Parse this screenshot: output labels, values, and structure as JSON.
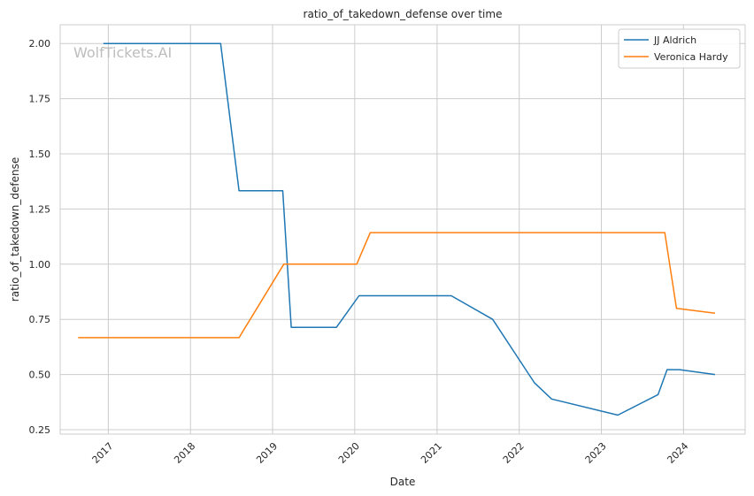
{
  "chart_data": {
    "type": "line",
    "title": "ratio_of_takedown_defense over time",
    "xlabel": "Date",
    "ylabel": "ratio_of_takedown_defense",
    "watermark": "WolfTickets.AI",
    "x_axis": {
      "type": "date",
      "min": "2016-06-01",
      "max": "2024-10-01",
      "ticks": [
        "2017",
        "2018",
        "2019",
        "2020",
        "2021",
        "2022",
        "2023",
        "2024"
      ]
    },
    "y_axis": {
      "min": 0.23,
      "max": 2.085,
      "ticks": [
        "0.25",
        "0.50",
        "0.75",
        "1.00",
        "1.25",
        "1.50",
        "1.75",
        "2.00"
      ]
    },
    "grid": true,
    "legend_position": "top-right",
    "series": [
      {
        "name": "JJ Aldrich",
        "color": "#1f77b4",
        "points": [
          [
            "2016-12-10",
            2.0
          ],
          [
            "2018-05-15",
            2.0
          ],
          [
            "2018-08-05",
            1.333
          ],
          [
            "2019-02-15",
            1.333
          ],
          [
            "2019-03-25",
            0.714
          ],
          [
            "2019-10-12",
            0.714
          ],
          [
            "2020-01-20",
            0.857
          ],
          [
            "2021-03-05",
            0.857
          ],
          [
            "2021-09-05",
            0.75
          ],
          [
            "2022-03-10",
            0.462
          ],
          [
            "2022-05-25",
            0.389
          ],
          [
            "2023-03-15",
            0.316
          ],
          [
            "2023-09-10",
            0.409
          ],
          [
            "2023-10-20",
            0.522
          ],
          [
            "2023-12-15",
            0.522
          ],
          [
            "2024-05-20",
            0.5
          ]
        ]
      },
      {
        "name": "Veronica Hardy",
        "color": "#ff7f0e",
        "points": [
          [
            "2016-08-20",
            0.667
          ],
          [
            "2018-08-05",
            0.667
          ],
          [
            "2019-02-20",
            1.0
          ],
          [
            "2020-01-10",
            1.0
          ],
          [
            "2020-03-10",
            1.143
          ],
          [
            "2023-10-10",
            1.143
          ],
          [
            "2023-12-01",
            0.8
          ],
          [
            "2024-05-20",
            0.778
          ]
        ]
      }
    ]
  }
}
